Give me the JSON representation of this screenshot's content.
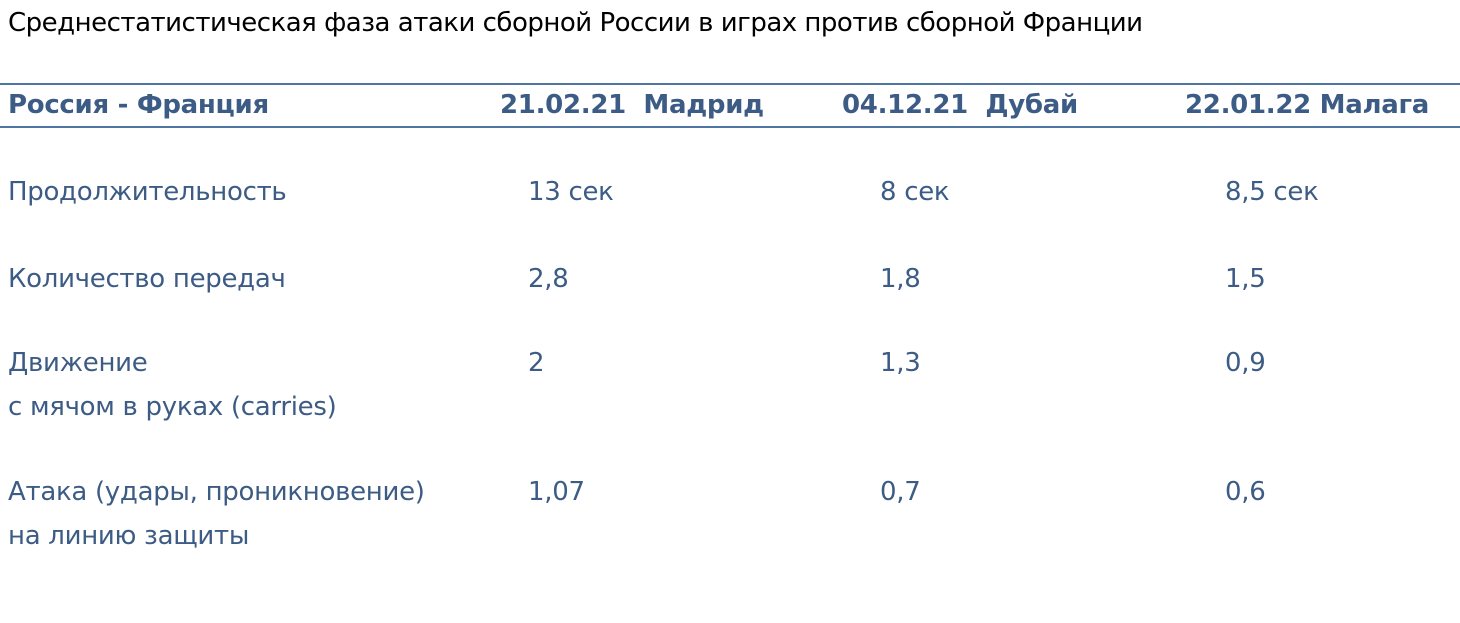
{
  "title": "Среднестатистическая фаза атаки сборной России в играх против сборной Франции",
  "table": {
    "header": [
      "Россия - Франция",
      "21.02.21  Мадрид",
      "04.12.21  Дубай",
      "22.01.22 Малага"
    ],
    "rows": [
      {
        "label": [
          "Продолжительность"
        ],
        "values": [
          "13 сек",
          "8 сек",
          "8,5 сек"
        ]
      },
      {
        "label": [
          "Количество передач"
        ],
        "values": [
          "2,8",
          "1,8",
          "1,5"
        ]
      },
      {
        "label": [
          "Движение",
          "с мячом в руках (carries)"
        ],
        "values": [
          "2",
          "1,3",
          "0,9"
        ]
      },
      {
        "label": [
          "Атака (удары, проникновение)",
          "на линию защиты"
        ],
        "values": [
          "1,07",
          "0,7",
          "0,6"
        ]
      }
    ]
  }
}
